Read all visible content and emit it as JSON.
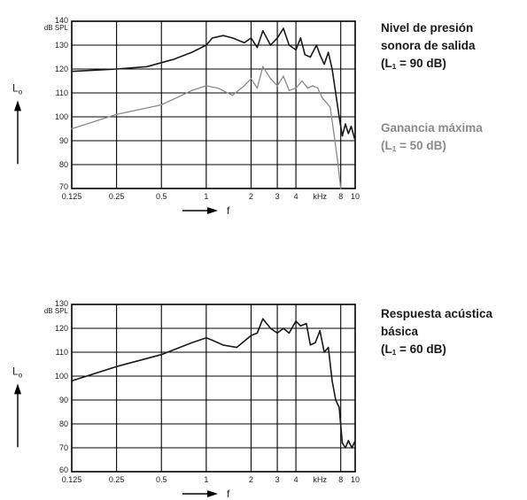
{
  "colors": {
    "dark": "#1a1a1a",
    "gray": "#8a8a8a",
    "grid": "#000000"
  },
  "icons": {
    "axis_arrow": "arrow-icon"
  },
  "legend1": {
    "line1": "Nivel de presión",
    "line2": "sonora de salida",
    "line3_pre": "(L",
    "line3_sub": "1",
    "line3_post": " = 90 dB)"
  },
  "legend2": {
    "line1": "Ganancia máxima",
    "line2_pre": "(L",
    "line2_sub": "1",
    "line2_post": " = 50 dB)"
  },
  "legend3": {
    "line1": "Respuesta acústica",
    "line2": "básica",
    "line3_pre": "(L",
    "line3_sub": "1",
    "line3_post": " = 60 dB)"
  },
  "chart_data": [
    {
      "type": "line",
      "x_scale": "log",
      "xlim": [
        0.125,
        10
      ],
      "ylim": [
        70,
        140
      ],
      "unit_label": "dB SPL",
      "ylabel": "Lo",
      "xlabel": "f",
      "x_ticks": [
        "0.125",
        "0.25",
        "0.5",
        "1",
        "2",
        "3",
        "4",
        "kHz",
        "8",
        "10"
      ],
      "y_ticks": [
        "70",
        "80",
        "90",
        "100",
        "110",
        "120",
        "130",
        "140"
      ],
      "grid": true,
      "series": [
        {
          "name": "Nivel de presión sonora de salida (L1 = 90 dB)",
          "color": "dark",
          "x": [
            0.125,
            0.25,
            0.4,
            0.6,
            0.8,
            1.0,
            1.1,
            1.3,
            1.5,
            1.8,
            2.0,
            2.2,
            2.4,
            2.7,
            3.0,
            3.3,
            3.6,
            4.0,
            4.3,
            4.6,
            5.0,
            5.5,
            5.8,
            6.2,
            6.6,
            7.0,
            7.4,
            7.8,
            8.2,
            8.6,
            9.0,
            9.4,
            10.0
          ],
          "y": [
            119,
            120,
            121,
            124,
            127,
            130,
            133,
            134,
            133,
            131,
            133,
            129,
            136,
            130,
            133,
            137,
            130,
            128,
            133,
            126,
            125,
            130,
            126,
            122,
            127,
            120,
            110,
            100,
            92,
            97,
            93,
            96,
            90
          ]
        },
        {
          "name": "Ganancia máxima (L1 = 50 dB)",
          "color": "gray",
          "x": [
            0.125,
            0.25,
            0.5,
            0.8,
            1.0,
            1.2,
            1.5,
            1.8,
            2.0,
            2.2,
            2.4,
            2.7,
            3.0,
            3.3,
            3.6,
            4.0,
            4.4,
            4.8,
            5.2,
            5.6,
            6.0,
            6.4,
            6.8,
            7.2,
            7.6,
            8.0
          ],
          "y": [
            95,
            101,
            105,
            111,
            113,
            112,
            109,
            113,
            116,
            112,
            121,
            116,
            113,
            117,
            111,
            112,
            115,
            112,
            113,
            112,
            108,
            106,
            104,
            93,
            82,
            70
          ]
        }
      ]
    },
    {
      "type": "line",
      "x_scale": "log",
      "xlim": [
        0.125,
        10
      ],
      "ylim": [
        60,
        130
      ],
      "unit_label": "dB SPL",
      "ylabel": "Lo",
      "xlabel": "f",
      "x_ticks": [
        "0.125",
        "0.25",
        "0.5",
        "1",
        "2",
        "3",
        "4",
        "kHz",
        "8",
        "10"
      ],
      "y_ticks": [
        "60",
        "70",
        "80",
        "90",
        "100",
        "110",
        "120",
        "130"
      ],
      "grid": true,
      "series": [
        {
          "name": "Respuesta acústica básica (L1 = 60 dB)",
          "color": "dark",
          "x": [
            0.125,
            0.25,
            0.5,
            0.8,
            1.0,
            1.1,
            1.3,
            1.6,
            2.0,
            2.2,
            2.4,
            2.7,
            3.0,
            3.3,
            3.6,
            4.0,
            4.3,
            4.7,
            5.0,
            5.4,
            5.8,
            6.2,
            6.6,
            7.0,
            7.4,
            7.8,
            8.2,
            8.6,
            9.0,
            9.5,
            10.0
          ],
          "y": [
            98,
            104,
            109,
            114,
            116,
            115,
            113,
            112,
            117,
            118,
            124,
            120,
            118,
            120,
            118,
            123,
            121,
            122,
            113,
            114,
            119,
            110,
            112,
            98,
            90,
            87,
            72,
            70,
            73,
            70,
            73
          ]
        }
      ]
    }
  ]
}
